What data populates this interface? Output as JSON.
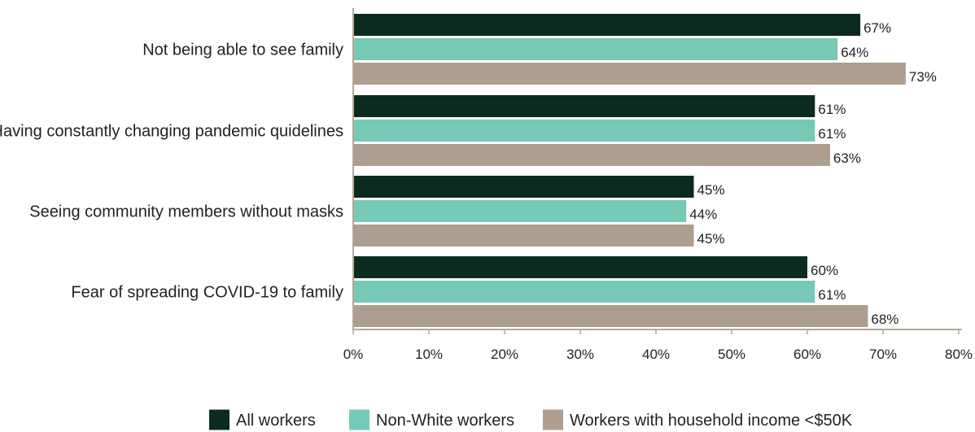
{
  "chart_data": {
    "type": "bar",
    "orientation": "horizontal",
    "categories": [
      "Not being able to see family",
      "Having constantly changing pandemic quidelines",
      "Seeing community members without masks",
      "Fear of spreading COVID-19 to family"
    ],
    "series": [
      {
        "name": "All workers",
        "color": "#0b2b1f",
        "values": [
          67,
          61,
          45,
          60
        ]
      },
      {
        "name": "Non-White workers",
        "color": "#76c9b5",
        "values": [
          64,
          61,
          44,
          61
        ]
      },
      {
        "name": "Workers with household income <$50K",
        "color": "#ae9e8f",
        "values": [
          73,
          63,
          45,
          68
        ]
      }
    ],
    "xlim": [
      0,
      80
    ],
    "xticks": [
      0,
      10,
      20,
      30,
      40,
      50,
      60,
      70,
      80
    ],
    "tick_suffix": "%",
    "value_suffix": "%",
    "grid": false,
    "legend_position": "bottom",
    "axis_color": "#b5a895"
  }
}
